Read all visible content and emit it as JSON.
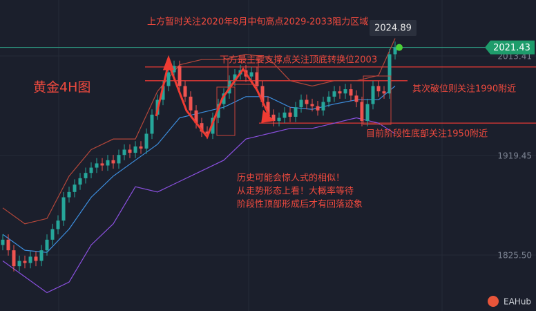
{
  "chart_data": {
    "type": "candlestick",
    "title": "黄金4H图",
    "annotations": [
      "上方暂时关注2020年8月中旬高点2029-2033阻力区域",
      "下方最主要支撑点关注顶底转换位2003",
      "其次破位则关注1990附近",
      "目前阶段性底部关注1950附近",
      "历史可能会惊人式的相似！",
      "从走势形态上看！大概率等待",
      "阶段性顶部形成后才有回落迹象"
    ],
    "price_label": 2024.89,
    "last_price": 2021.43,
    "brand": "EAHub",
    "ylim": [
      1772.7,
      2066.2
    ],
    "yticks": [
      {
        "value": 1825.5,
        "label": "1825.50"
      },
      {
        "value": 1919.45,
        "label": "1919.45"
      },
      {
        "value": 2013.41,
        "label": "2013.41"
      }
    ],
    "grid": true,
    "up_color": "#26a69a",
    "down_color": "#ef5350",
    "open": [
      1835,
      1840,
      1830,
      1815,
      1820,
      1818,
      1824,
      1820,
      1830,
      1840,
      1850,
      1858,
      1880,
      1885,
      1892,
      1898,
      1903,
      1908,
      1912,
      1910,
      1915,
      1912,
      1920,
      1925,
      1922,
      1928,
      1926,
      1940,
      1958,
      1972,
      1985,
      1998,
      2004,
      1985,
      1975,
      1962,
      1950,
      1942,
      1940,
      1955,
      1968,
      1978,
      1990,
      1996,
      2000,
      1994,
      1998,
      1985,
      1970,
      1958,
      1952,
      1955,
      1960,
      1956,
      1965,
      1972,
      1968,
      1966,
      1962,
      1970,
      1975,
      1980,
      1978,
      1982,
      1976,
      1970,
      1952,
      1968,
      1985,
      1980,
      1978,
      2015
    ],
    "high": [
      1845,
      1845,
      1835,
      1825,
      1825,
      1829,
      1829,
      1835,
      1845,
      1855,
      1863,
      1885,
      1890,
      1897,
      1903,
      1908,
      1913,
      1917,
      1917,
      1920,
      1920,
      1925,
      1930,
      1930,
      1933,
      1933,
      1945,
      1963,
      1977,
      1990,
      2003,
      2009,
      2009,
      1990,
      1980,
      1967,
      1955,
      1947,
      1960,
      1973,
      1983,
      1995,
      2001,
      2005,
      2005,
      2003,
      2003,
      1990,
      1975,
      1963,
      1960,
      1965,
      1965,
      1970,
      1977,
      1977,
      1973,
      1971,
      1975,
      1980,
      1985,
      1985,
      1987,
      1987,
      1981,
      1975,
      1973,
      1990,
      1990,
      1985,
      2020,
      2027
    ],
    "low": [
      1830,
      1825,
      1810,
      1810,
      1813,
      1813,
      1815,
      1815,
      1825,
      1835,
      1845,
      1853,
      1875,
      1880,
      1887,
      1893,
      1898,
      1903,
      1905,
      1905,
      1907,
      1907,
      1915,
      1917,
      1917,
      1921,
      1921,
      1935,
      1953,
      1967,
      1980,
      1993,
      1980,
      1970,
      1957,
      1945,
      1937,
      1935,
      1935,
      1950,
      1963,
      1973,
      1985,
      1991,
      1989,
      1989,
      1980,
      1965,
      1953,
      1947,
      1947,
      1950,
      1951,
      1951,
      1960,
      1963,
      1961,
      1957,
      1957,
      1965,
      1970,
      1973,
      1973,
      1971,
      1965,
      1947,
      1947,
      1963,
      1975,
      1973,
      1973,
      2010
    ],
    "close": [
      1840,
      1830,
      1815,
      1820,
      1818,
      1824,
      1820,
      1830,
      1840,
      1850,
      1858,
      1880,
      1885,
      1892,
      1898,
      1903,
      1908,
      1912,
      1910,
      1915,
      1912,
      1920,
      1925,
      1922,
      1928,
      1926,
      1940,
      1958,
      1972,
      1985,
      1998,
      2004,
      1985,
      1975,
      1962,
      1950,
      1942,
      1940,
      1955,
      1968,
      1978,
      1990,
      1996,
      2000,
      1994,
      1998,
      1985,
      1970,
      1958,
      1952,
      1955,
      1960,
      1956,
      1965,
      1972,
      1968,
      1966,
      1962,
      1970,
      1975,
      1980,
      1978,
      1982,
      1976,
      1970,
      1952,
      1968,
      1985,
      1980,
      1978,
      2015,
      2021.43
    ],
    "bands": {
      "x": [
        0,
        4,
        8,
        12,
        16,
        20,
        24,
        28,
        32,
        36,
        40,
        44,
        48,
        52,
        56,
        60,
        64,
        68,
        71
      ],
      "series": [
        {
          "color": "#b5473a",
          "values": [
            1870,
            1855,
            1860,
            1900,
            1925,
            1935,
            1935,
            1980,
            2005,
            2010,
            2010,
            2015,
            2012,
            1990,
            1985,
            1990,
            1990,
            1995,
            2030
          ]
        },
        {
          "color": "#3d8fe0",
          "values": [
            1845,
            1830,
            1828,
            1850,
            1880,
            1900,
            1915,
            1930,
            1955,
            1960,
            1965,
            1975,
            1975,
            1965,
            1963,
            1968,
            1972,
            1972,
            1985
          ]
        },
        {
          "color": "#8b50e0",
          "values": [
            1820,
            1805,
            1790,
            1800,
            1835,
            1855,
            1890,
            1885,
            1895,
            1905,
            1915,
            1935,
            1940,
            1945,
            1945,
            1950,
            1955,
            1950,
            1940
          ]
        }
      ]
    },
    "levels": [
      2003,
      1990,
      1950
    ],
    "level_color": "#e53935"
  }
}
